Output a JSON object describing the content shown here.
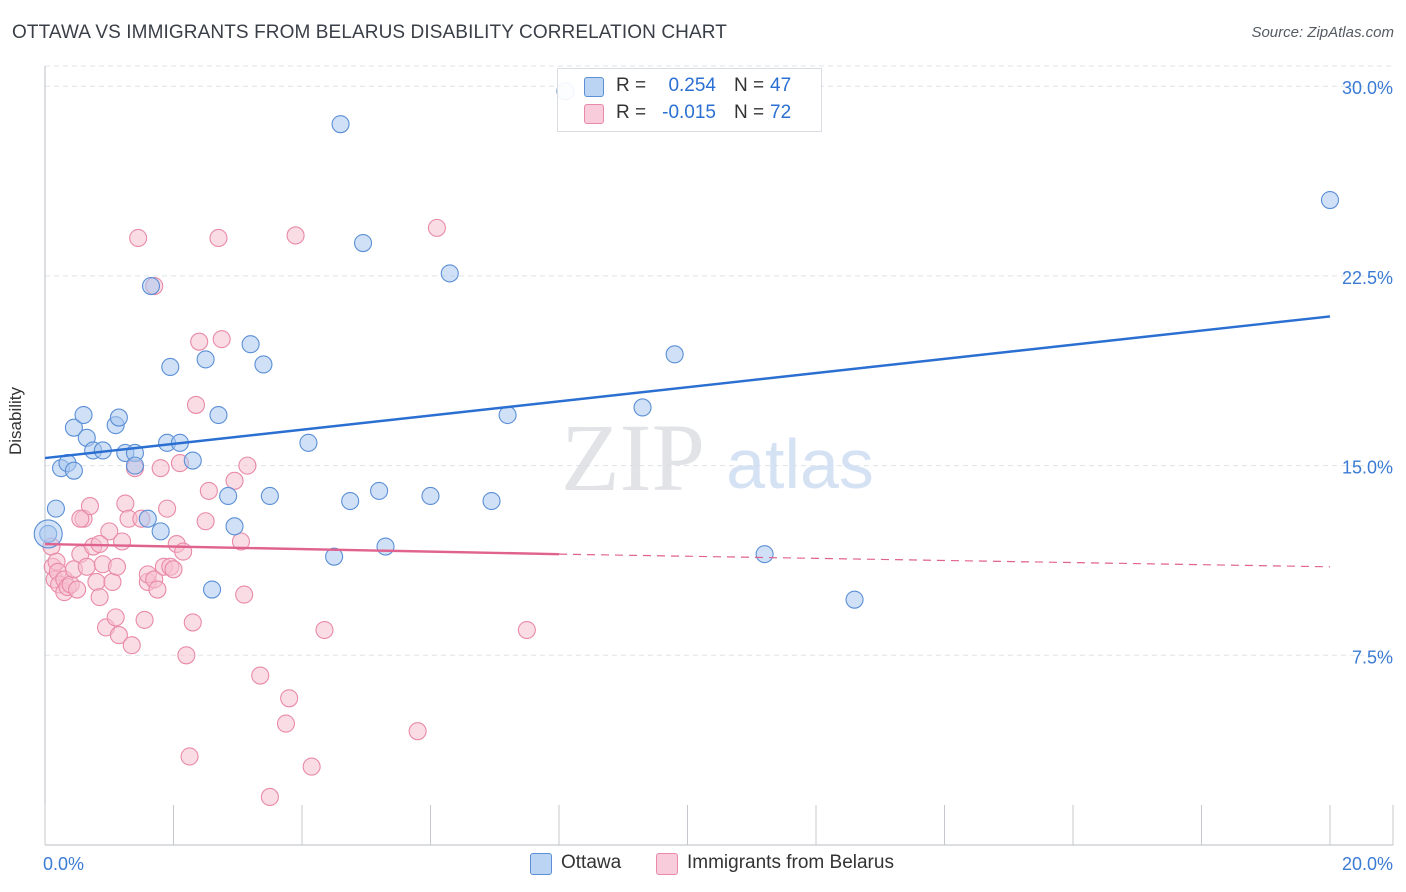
{
  "title": "OTTAWA VS IMMIGRANTS FROM BELARUS DISABILITY CORRELATION CHART",
  "source": "Source: ZipAtlas.com",
  "watermark": {
    "zip": "ZIP",
    "atlas": "atlas"
  },
  "colors": {
    "ottawa_fill": "#a9c8f0",
    "ottawa_stroke": "#5b8fd6",
    "ottawa_line": "#2a6fd1",
    "belarus_fill": "#f6bfd0",
    "belarus_stroke": "#e98aa8",
    "belarus_line": "#e0628e",
    "tick_label": "#3b7bd4",
    "grid": "#dfe3e8"
  },
  "legend": {
    "r_label": "R =",
    "n_label": "N =",
    "rows": [
      {
        "series": "Ottawa",
        "r": "0.254",
        "n": "47"
      },
      {
        "series": "Immigrants from Belarus",
        "r": "-0.015",
        "n": "72"
      }
    ]
  },
  "chart_data": {
    "type": "scatter",
    "title": "OTTAWA VS IMMIGRANTS FROM BELARUS DISABILITY CORRELATION CHART",
    "xlabel": "",
    "ylabel": "Disability",
    "xlim": [
      0,
      20
    ],
    "ylim": [
      0,
      30.8
    ],
    "x_tick_labels": [
      "0.0%",
      "20.0%"
    ],
    "y_ticks": [
      7.5,
      15.0,
      22.5,
      30.0
    ],
    "y_tick_labels": [
      "7.5%",
      "15.0%",
      "22.5%",
      "30.0%"
    ],
    "grid": "horizontal dashed",
    "legend_position": "top-center and bottom",
    "series": [
      {
        "name": "Ottawa",
        "points": [
          [
            0.05,
            12.3
          ],
          [
            0.17,
            13.3
          ],
          [
            0.25,
            14.9
          ],
          [
            0.35,
            15.1
          ],
          [
            0.45,
            16.5
          ],
          [
            0.45,
            14.8
          ],
          [
            0.6,
            17.0
          ],
          [
            0.65,
            16.1
          ],
          [
            0.75,
            15.6
          ],
          [
            0.9,
            15.6
          ],
          [
            1.1,
            16.6
          ],
          [
            1.15,
            16.9
          ],
          [
            1.25,
            15.5
          ],
          [
            1.4,
            15.5
          ],
          [
            1.4,
            15.0
          ],
          [
            1.6,
            12.9
          ],
          [
            1.65,
            22.1
          ],
          [
            1.8,
            12.4
          ],
          [
            1.9,
            15.9
          ],
          [
            1.95,
            18.9
          ],
          [
            2.1,
            15.9
          ],
          [
            2.3,
            15.2
          ],
          [
            2.5,
            19.2
          ],
          [
            2.6,
            10.1
          ],
          [
            2.7,
            17.0
          ],
          [
            2.85,
            13.8
          ],
          [
            2.95,
            12.6
          ],
          [
            3.2,
            19.8
          ],
          [
            3.4,
            19.0
          ],
          [
            3.5,
            13.8
          ],
          [
            4.1,
            15.9
          ],
          [
            4.6,
            28.5
          ],
          [
            4.5,
            11.4
          ],
          [
            4.75,
            13.6
          ],
          [
            4.95,
            23.8
          ],
          [
            5.2,
            14.0
          ],
          [
            5.3,
            11.8
          ],
          [
            6.0,
            13.8
          ],
          [
            6.3,
            22.6
          ],
          [
            6.95,
            13.6
          ],
          [
            7.2,
            17.0
          ],
          [
            9.3,
            17.3
          ],
          [
            9.8,
            19.4
          ],
          [
            11.2,
            11.5
          ],
          [
            12.6,
            9.7
          ],
          [
            20.0,
            25.5
          ],
          [
            8.1,
            29.8
          ]
        ]
      },
      {
        "name": "Immigrants from Belarus",
        "points": [
          [
            0.1,
            11.8
          ],
          [
            0.12,
            11.0
          ],
          [
            0.15,
            10.5
          ],
          [
            0.18,
            11.2
          ],
          [
            0.2,
            10.8
          ],
          [
            0.22,
            10.3
          ],
          [
            0.3,
            10.5
          ],
          [
            0.3,
            10.0
          ],
          [
            0.35,
            10.2
          ],
          [
            0.4,
            10.3
          ],
          [
            0.45,
            10.9
          ],
          [
            0.5,
            10.1
          ],
          [
            0.55,
            11.5
          ],
          [
            0.6,
            12.9
          ],
          [
            0.65,
            11.0
          ],
          [
            0.7,
            13.4
          ],
          [
            0.75,
            11.8
          ],
          [
            0.8,
            10.4
          ],
          [
            0.85,
            9.8
          ],
          [
            0.9,
            11.1
          ],
          [
            0.95,
            8.6
          ],
          [
            1.0,
            12.4
          ],
          [
            1.05,
            10.4
          ],
          [
            1.1,
            9.0
          ],
          [
            1.12,
            11.0
          ],
          [
            1.15,
            8.3
          ],
          [
            1.2,
            12.0
          ],
          [
            1.25,
            13.5
          ],
          [
            1.3,
            12.9
          ],
          [
            1.35,
            7.9
          ],
          [
            1.4,
            14.9
          ],
          [
            1.45,
            24.0
          ],
          [
            1.5,
            12.9
          ],
          [
            1.55,
            8.9
          ],
          [
            1.6,
            10.4
          ],
          [
            1.6,
            10.7
          ],
          [
            1.7,
            10.5
          ],
          [
            1.7,
            22.1
          ],
          [
            1.75,
            10.1
          ],
          [
            1.8,
            14.9
          ],
          [
            1.85,
            11.0
          ],
          [
            1.9,
            13.3
          ],
          [
            1.95,
            11.0
          ],
          [
            2.0,
            10.9
          ],
          [
            2.05,
            11.9
          ],
          [
            2.1,
            15.1
          ],
          [
            2.15,
            11.6
          ],
          [
            2.2,
            7.5
          ],
          [
            2.25,
            3.5
          ],
          [
            2.3,
            8.8
          ],
          [
            2.35,
            17.4
          ],
          [
            2.4,
            19.9
          ],
          [
            2.5,
            12.8
          ],
          [
            2.55,
            14.0
          ],
          [
            2.7,
            24.0
          ],
          [
            2.75,
            20.0
          ],
          [
            2.95,
            14.4
          ],
          [
            3.05,
            12.0
          ],
          [
            3.1,
            9.9
          ],
          [
            3.15,
            15.0
          ],
          [
            3.35,
            6.7
          ],
          [
            3.5,
            1.9
          ],
          [
            3.75,
            4.8
          ],
          [
            3.8,
            5.8
          ],
          [
            3.9,
            24.1
          ],
          [
            4.15,
            3.1
          ],
          [
            4.35,
            8.5
          ],
          [
            5.8,
            4.5
          ],
          [
            6.1,
            24.4
          ],
          [
            7.5,
            8.5
          ],
          [
            0.55,
            12.9
          ],
          [
            0.85,
            11.9
          ]
        ]
      }
    ],
    "trend_lines": [
      {
        "series": "Ottawa",
        "from": [
          0,
          15.3
        ],
        "to": [
          20,
          20.9
        ],
        "style": "solid"
      },
      {
        "series": "Immigrants from Belarus",
        "from": [
          0,
          11.9
        ],
        "to": [
          8.0,
          11.5
        ],
        "style": "solid"
      },
      {
        "series": "Immigrants from Belarus",
        "from": [
          8.0,
          11.5
        ],
        "to": [
          20,
          11.0
        ],
        "style": "dashed"
      }
    ]
  }
}
